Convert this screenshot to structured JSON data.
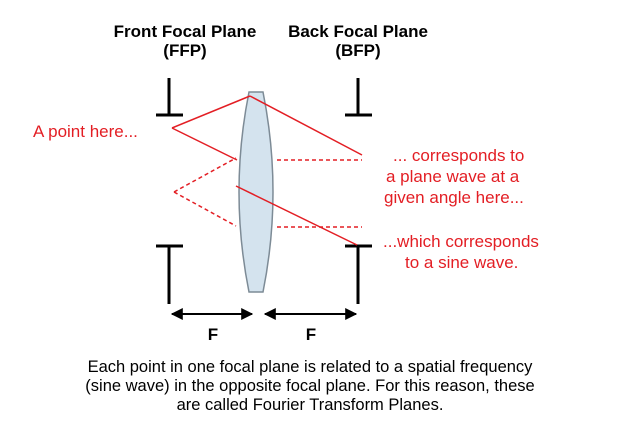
{
  "title": {
    "ffp_line1": "Front Focal Plane",
    "ffp_line2": "(FFP)",
    "bfp_line1": "Back Focal Plane",
    "bfp_line2": "(BFP)"
  },
  "annotations": {
    "point_here": "A point here...",
    "plane_wave_line1": "... corresponds to",
    "plane_wave_line2": "a plane wave at a",
    "plane_wave_line3": "given angle here...",
    "sine_wave_line1": "...which corresponds",
    "sine_wave_line2": "to a sine wave."
  },
  "distances": {
    "left_label": "F",
    "right_label": "F"
  },
  "caption": {
    "line1": "Each point in one focal plane is related to a spatial frequency",
    "line2": "(sine wave) in the opposite focal plane. For this reason, these",
    "line3": "are called Fourier Transform Planes."
  },
  "colors": {
    "accent_red": "#e31e24",
    "lens_fill": "#d4e3ee",
    "lens_stroke": "#7d8b96",
    "ink": "#000000"
  }
}
